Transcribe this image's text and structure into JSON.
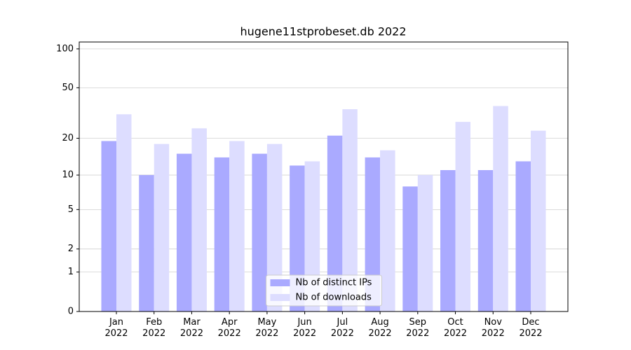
{
  "chart_data": {
    "type": "bar",
    "title": "hugene11stprobeset.db 2022",
    "categories": [
      "Jan\n2022",
      "Feb\n2022",
      "Mar\n2022",
      "Apr\n2022",
      "May\n2022",
      "Jun\n2022",
      "Jul\n2022",
      "Aug\n2022",
      "Sep\n2022",
      "Oct\n2022",
      "Nov\n2022",
      "Dec\n2022"
    ],
    "series": [
      {
        "name": "Nb of distinct IPs",
        "color": "#aaaaff",
        "values": [
          19,
          10,
          15,
          14,
          15,
          12,
          21,
          14,
          8,
          11,
          11,
          13
        ]
      },
      {
        "name": "Nb of downloads",
        "color": "#ddddff",
        "values": [
          31,
          18,
          24,
          19,
          18,
          13,
          34,
          16,
          10,
          27,
          36,
          23
        ]
      }
    ],
    "yscale": "log1p",
    "ylim": [
      0,
      113
    ],
    "yticks": [
      0,
      1,
      2,
      5,
      10,
      20,
      50,
      100
    ],
    "grid": true,
    "legend": "lower center"
  }
}
